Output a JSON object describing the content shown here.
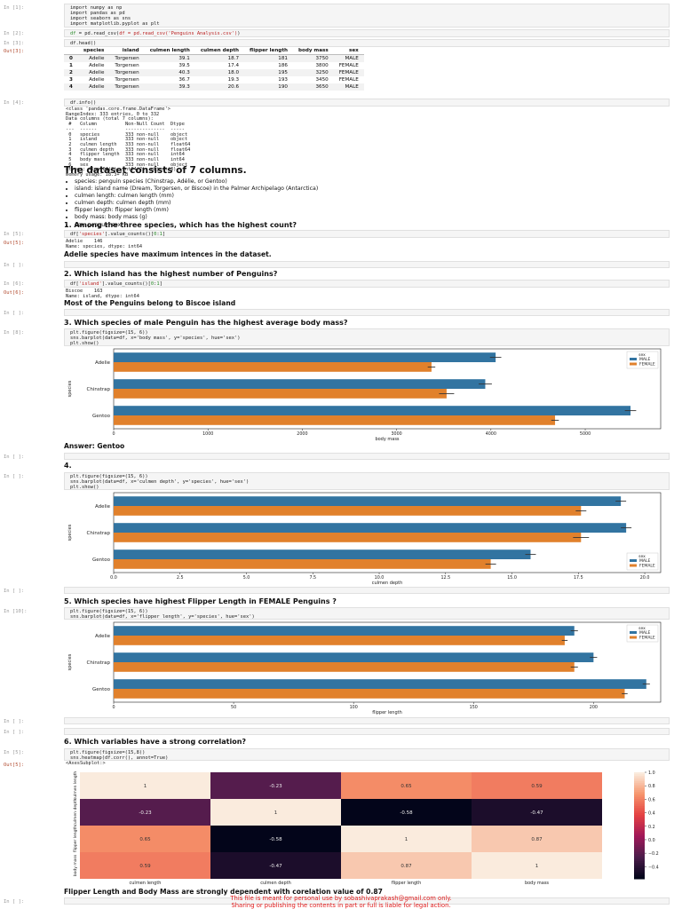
{
  "colors": {
    "male": "#3274a1",
    "female": "#e1812c",
    "notice": "#e01818"
  },
  "cells": {
    "c1": {
      "prompt": "In [1]:",
      "lines": [
        "import numpy as np",
        "import pandas as pd",
        "import seaborn as sns",
        "import matplotlib.pyplot as plt"
      ]
    },
    "c2": {
      "prompt": "In [2]:",
      "code": "df = pd.read_csv('Penguins Analysis.csv')"
    },
    "c3": {
      "prompt": "In [3]:",
      "code": "df.head()",
      "out_prompt": "Out[3]:"
    },
    "c4": {
      "prompt": "In [4]:",
      "code": "df.info()"
    },
    "c5": {
      "prompt": "In [5]:",
      "code": "df['species'].value_counts()[0:1]",
      "out_prompt": "Out[5]:"
    },
    "c6": {
      "prompt": "In [ ]:"
    },
    "c7": {
      "prompt": "In [6]:",
      "code": "df['island'].value_counts()[0:1]",
      "out_prompt": "Out[6]:"
    },
    "c8": {
      "prompt": "In [ ]:"
    },
    "c9": {
      "prompt": "In [8]:",
      "lines": [
        "plt.figure(figsize=(15, 6))",
        "sns.barplot(data=df, x='body mass', y='species', hue='sex')",
        "plt.show()"
      ]
    },
    "c10": {
      "prompt": "In [ ]:"
    },
    "c11": {
      "prompt": "In [ ]:",
      "lines": [
        "plt.figure(figsize=(15, 6))",
        "sns.barplot(data=df, x='culmen depth', y='species', hue='sex')",
        "plt.show()"
      ]
    },
    "c12": {
      "prompt": "In [ ]:"
    },
    "c13": {
      "prompt": "In [10]:",
      "lines": [
        "plt.figure(figsize=(15, 6))",
        "sns.barplot(data=df, x='flipper length', y='species', hue='sex')"
      ]
    },
    "c14": {
      "prompt": "In [ ]:"
    },
    "c15": {
      "prompt": "In [ ]:"
    },
    "c16": {
      "prompt": "In [5]:",
      "lines": [
        "plt.figure(figsize=(15,8))",
        "sns.heatmap(df.corr(), annot=True)"
      ],
      "out_prompt": "Out[5]:",
      "out": "<AxesSubplot:>"
    },
    "c17": {
      "prompt": "In [ ]:"
    }
  },
  "head_table": {
    "columns": [
      "species",
      "island",
      "culmen length",
      "culmen depth",
      "flipper length",
      "body mass",
      "sex"
    ],
    "rows": [
      {
        "idx": "0",
        "cells": [
          "Adelie",
          "Torgersen",
          "39.1",
          "18.7",
          "181",
          "3750",
          "MALE"
        ]
      },
      {
        "idx": "1",
        "cells": [
          "Adelie",
          "Torgersen",
          "39.5",
          "17.4",
          "186",
          "3800",
          "FEMALE"
        ]
      },
      {
        "idx": "2",
        "cells": [
          "Adelie",
          "Torgersen",
          "40.3",
          "18.0",
          "195",
          "3250",
          "FEMALE"
        ]
      },
      {
        "idx": "3",
        "cells": [
          "Adelie",
          "Torgersen",
          "36.7",
          "19.3",
          "193",
          "3450",
          "FEMALE"
        ]
      },
      {
        "idx": "4",
        "cells": [
          "Adelie",
          "Torgersen",
          "39.3",
          "20.6",
          "190",
          "3650",
          "MALE"
        ]
      }
    ]
  },
  "info_output": "<class 'pandas.core.frame.DataFrame'>\nRangeIndex: 333 entries, 0 to 332\nData columns (total 7 columns):\n #   Column          Non-Null Count  Dtype\n---  ------          --------------  -----\n 0   species         333 non-null    object\n 1   island          333 non-null    object\n 2   culmen length   333 non-null    float64\n 3   culmen depth    333 non-null    float64\n 4   flipper length  333 non-null    int64\n 5   body mass       333 non-null    int64\n 6   sex             333 non-null    object\ndtypes: float64(2), int64(2), object(3)\nmemory usage: 18.3+ KB",
  "dataset_heading": "The dataset consists of 7 columns.",
  "columns_list": [
    "species: penguin species (Chinstrap, Adélie, or Gentoo)",
    "island: island name (Dream, Torgersen, or Biscoe) in the Palmer Archipelago (Antarctica)",
    "culmen length: culmen length (mm)",
    "culmen depth: culmen depth (mm)",
    "flipper length: flipper length (mm)",
    "body mass: body mass (g)",
    "sex: penguin sex"
  ],
  "q1": {
    "title": "1. Among the three species, which has the highest count?",
    "output": "Adelie    146\nName: species, dtype: int64",
    "answer": "Adelie species have maximum intences in the dataset."
  },
  "q2": {
    "title": "2. Which island has the highest number of Penguins?",
    "output": "Biscoe    163\nName: island, dtype: int64",
    "answer": "Most of the Penguins belong to Biscoe island"
  },
  "q3": {
    "title": "3. Which species of male Penguin has the highest average body mass?",
    "answer": "Answer: Gentoo"
  },
  "q4": {
    "title": "4."
  },
  "q5": {
    "title": "5. Which species have highest Flipper Length in FEMALE Penguins ?"
  },
  "q6": {
    "title": "6. Which variables have a strong correlation?",
    "answer": "Flipper Length and Body Mass are strongly dependent with corelation value of 0.87"
  },
  "notice": {
    "line1": "This file is meant for personal use by sobashivaprakash@gmail.com only.",
    "line2": "Sharing or publishing the contents in part or full is liable for legal action."
  },
  "chart_data": [
    {
      "type": "bar",
      "orientation": "horizontal",
      "title": "",
      "xlabel": "body mass",
      "ylabel": "species",
      "categories": [
        "Adelie",
        "Chinstrap",
        "Gentoo"
      ],
      "xlim": [
        0,
        5800
      ],
      "ticks": [
        "0",
        "1000",
        "2000",
        "3000",
        "4000",
        "5000"
      ],
      "tick_values": [
        0,
        1000,
        2000,
        3000,
        4000,
        5000
      ],
      "legend": {
        "title": "sex",
        "position": "top-right"
      },
      "series": [
        {
          "name": "MALE",
          "values": [
            4050,
            3940,
            5480
          ],
          "err": [
            60,
            70,
            60
          ]
        },
        {
          "name": "FEMALE",
          "values": [
            3370,
            3530,
            4680
          ],
          "err": [
            40,
            80,
            40
          ]
        }
      ]
    },
    {
      "type": "bar",
      "orientation": "horizontal",
      "title": "",
      "xlabel": "culmen depth",
      "ylabel": "species",
      "categories": [
        "Adelie",
        "Chinstrap",
        "Gentoo"
      ],
      "xlim": [
        0,
        20.6
      ],
      "ticks": [
        "0.0",
        "2.5",
        "5.0",
        "7.5",
        "10.0",
        "12.5",
        "15.0",
        "17.5",
        "20.0"
      ],
      "tick_values": [
        0,
        2.5,
        5,
        7.5,
        10,
        12.5,
        15,
        17.5,
        20
      ],
      "legend": {
        "title": "sex",
        "position": "bottom-right"
      },
      "series": [
        {
          "name": "MALE",
          "values": [
            19.1,
            19.3,
            15.7
          ],
          "err": [
            0.2,
            0.2,
            0.2
          ]
        },
        {
          "name": "FEMALE",
          "values": [
            17.6,
            17.6,
            14.2
          ],
          "err": [
            0.2,
            0.3,
            0.2
          ]
        }
      ]
    },
    {
      "type": "bar",
      "orientation": "horizontal",
      "title": "",
      "xlabel": "flipper length",
      "ylabel": "species",
      "categories": [
        "Adelie",
        "Chinstrap",
        "Gentoo"
      ],
      "xlim": [
        0,
        228
      ],
      "ticks": [
        "0",
        "50",
        "100",
        "150",
        "200"
      ],
      "tick_values": [
        0,
        50,
        100,
        150,
        200
      ],
      "legend": {
        "title": "sex",
        "position": "top-right"
      },
      "series": [
        {
          "name": "MALE",
          "values": [
            192,
            200,
            222
          ],
          "err": [
            1.5,
            1.5,
            1.5
          ]
        },
        {
          "name": "FEMALE",
          "values": [
            188,
            192,
            213
          ],
          "err": [
            1.2,
            1.5,
            1.2
          ]
        }
      ]
    },
    {
      "type": "heatmap",
      "title": "",
      "labels": [
        "culmen length",
        "culmen depth",
        "flipper length",
        "body mass"
      ],
      "matrix": [
        [
          1,
          -0.23,
          0.65,
          0.59
        ],
        [
          -0.23,
          1,
          -0.58,
          -0.47
        ],
        [
          0.65,
          -0.58,
          1,
          0.87
        ],
        [
          0.59,
          -0.47,
          0.87,
          1
        ]
      ],
      "annotations": [
        [
          "1",
          "-0.23",
          "0.65",
          "0.59"
        ],
        [
          "-0.23",
          "1",
          "-0.58",
          "-0.47"
        ],
        [
          "0.65",
          "-0.58",
          "1",
          "0.87"
        ],
        [
          "0.59",
          "-0.47",
          "0.87",
          "1"
        ]
      ],
      "colorbar_ticks": [
        "1.0",
        "0.8",
        "0.6",
        "0.4",
        "0.2",
        "0.0",
        "−0.2",
        "−0.4"
      ],
      "colorbar_values": [
        1,
        0.8,
        0.6,
        0.4,
        0.2,
        0,
        -0.2,
        -0.4
      ],
      "vmin": -0.58,
      "vmax": 1
    }
  ]
}
